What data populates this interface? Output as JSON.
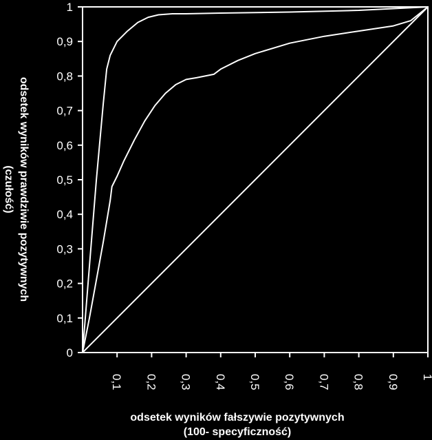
{
  "chart_data": {
    "type": "line",
    "title": "",
    "xlabel_lines": [
      "odsetek wyników fałszywie pozytywnych",
      "(100- specyficzność)"
    ],
    "ylabel_lines": [
      "odsetek wyników prawdziwie pozytywnych",
      "(czułość)"
    ],
    "xlim": [
      0,
      1
    ],
    "ylim": [
      0,
      1
    ],
    "grid": false,
    "legend": "none",
    "x_ticks": [
      {
        "value": 0.1,
        "label": "0,1"
      },
      {
        "value": 0.2,
        "label": "0,2"
      },
      {
        "value": 0.3,
        "label": "0,3"
      },
      {
        "value": 0.4,
        "label": "0,4"
      },
      {
        "value": 0.5,
        "label": "0,5"
      },
      {
        "value": 0.6,
        "label": "0,6"
      },
      {
        "value": 0.7,
        "label": "0,7"
      },
      {
        "value": 0.8,
        "label": "0,8"
      },
      {
        "value": 0.9,
        "label": "0,9"
      },
      {
        "value": 1.0,
        "label": "1"
      }
    ],
    "y_ticks": [
      {
        "value": 0,
        "label": "0"
      },
      {
        "value": 0.1,
        "label": "0,1"
      },
      {
        "value": 0.2,
        "label": "0,2"
      },
      {
        "value": 0.3,
        "label": "0,3"
      },
      {
        "value": 0.4,
        "label": "0,4"
      },
      {
        "value": 0.5,
        "label": "0,5"
      },
      {
        "value": 0.6,
        "label": "0,6"
      },
      {
        "value": 0.7,
        "label": "0,7"
      },
      {
        "value": 0.8,
        "label": "0,8"
      },
      {
        "value": 0.9,
        "label": "0,9"
      },
      {
        "value": 1.0,
        "label": "1"
      }
    ],
    "series": [
      {
        "id": "curve-a",
        "x": [
          0,
          0.02,
          0.04,
          0.06,
          0.07,
          0.08,
          0.1,
          0.13,
          0.16,
          0.19,
          0.22,
          0.26,
          0.3,
          0.4,
          0.6,
          0.8,
          1.0
        ],
        "y": [
          0,
          0.25,
          0.5,
          0.72,
          0.82,
          0.86,
          0.9,
          0.93,
          0.955,
          0.97,
          0.977,
          0.98,
          0.98,
          0.982,
          0.985,
          0.99,
          1.0
        ]
      },
      {
        "id": "curve-b",
        "x": [
          0,
          0.02,
          0.04,
          0.06,
          0.08,
          0.085,
          0.1,
          0.12,
          0.15,
          0.18,
          0.21,
          0.24,
          0.27,
          0.3,
          0.33,
          0.38,
          0.4,
          0.45,
          0.5,
          0.6,
          0.7,
          0.8,
          0.9,
          0.95,
          1.0
        ],
        "y": [
          0,
          0.1,
          0.21,
          0.32,
          0.44,
          0.48,
          0.51,
          0.555,
          0.615,
          0.67,
          0.715,
          0.75,
          0.775,
          0.79,
          0.795,
          0.805,
          0.82,
          0.845,
          0.865,
          0.895,
          0.915,
          0.93,
          0.945,
          0.96,
          1.0
        ]
      },
      {
        "id": "diagonal",
        "x": [
          0,
          1
        ],
        "y": [
          0,
          1
        ]
      }
    ]
  }
}
